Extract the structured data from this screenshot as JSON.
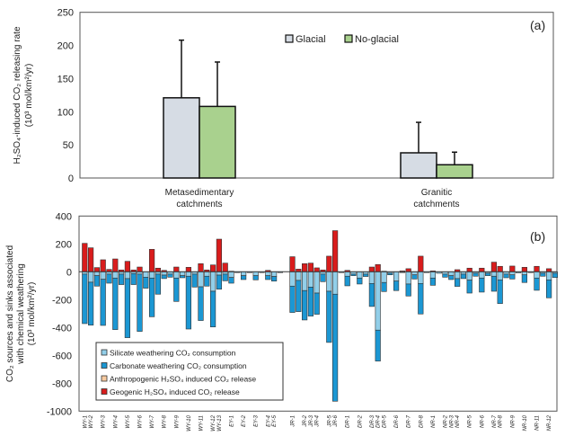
{
  "chart_data": [
    {
      "type": "bar",
      "panel_label": "(a)",
      "ylabel_line1": "H₂SO₄-induced CO₂ releasing rate",
      "ylabel_line2": "(10³ mol/km²/yr)",
      "ylim": [
        0,
        250
      ],
      "yticks": [
        0,
        50,
        100,
        150,
        200,
        250
      ],
      "categories": [
        [
          "Metasedimentary",
          "catchments"
        ],
        [
          "Granitic",
          "catchments"
        ]
      ],
      "legend_position": "top-center",
      "series": [
        {
          "name": "Glacial",
          "color": "#d6dce4",
          "values": [
            121,
            38
          ],
          "error_upper": [
            87,
            46
          ]
        },
        {
          "name": "No-glacial",
          "color": "#a9d18e",
          "values": [
            108,
            20
          ],
          "error_upper": [
            67,
            19
          ]
        }
      ]
    },
    {
      "type": "bar",
      "stacked": true,
      "panel_label": "(b)",
      "ylabel_line1": "CO₂ sources and sinks associated",
      "ylabel_line2": "with chemical weathering",
      "ylabel_line3": "(10³ mol/km²/yr)",
      "ylim": [
        -1000,
        400
      ],
      "yticks": [
        400,
        200,
        0,
        -200,
        -400,
        -600,
        -800,
        -1000
      ],
      "legend_position": "bottom-left",
      "series": [
        {
          "name": "Silicate weathering CO₂ consumption",
          "color": "#92cfe9"
        },
        {
          "name": "Carbonate weathering CO₂ consumption",
          "color": "#1b97d3"
        },
        {
          "name": "Anthropogenic H₂SO₄ induced CO₂  release",
          "color": "#f8cba0"
        },
        {
          "name": "Geogenic H₂SO₄ induced CO₂  release",
          "color": "#d91c1c"
        }
      ],
      "bars": [
        {
          "label": "WY-1",
          "silicate": -17,
          "carbonate": -355,
          "geogenic": 204
        },
        {
          "label": "WY-2",
          "silicate": -75,
          "carbonate": -308,
          "geogenic": 172
        },
        {
          "label": "",
          "silicate": -28,
          "carbonate": -75,
          "geogenic": 30
        },
        {
          "label": "WY-3",
          "silicate": -54,
          "carbonate": -331,
          "geogenic": 86
        },
        {
          "label": "",
          "silicate": -17,
          "carbonate": -65,
          "geogenic": 17
        },
        {
          "label": "WY-4",
          "silicate": -45,
          "carbonate": -370,
          "geogenic": 92
        },
        {
          "label": "",
          "silicate": -17,
          "carbonate": -75,
          "geogenic": 13
        },
        {
          "label": "WY-5",
          "silicate": -49,
          "carbonate": -424,
          "geogenic": 75
        },
        {
          "label": "",
          "silicate": -13,
          "carbonate": -79,
          "geogenic": 13
        },
        {
          "label": "WY-6",
          "silicate": -17,
          "carbonate": -411,
          "geogenic": 34
        },
        {
          "label": "",
          "silicate": -39,
          "carbonate": -79,
          "geogenic": 0
        },
        {
          "label": "WY-7",
          "silicate": -45,
          "carbonate": -278,
          "geogenic": 161
        },
        {
          "label": "",
          "silicate": -17,
          "carbonate": -144,
          "geogenic": 26
        },
        {
          "label": "WY-8",
          "silicate": -24,
          "carbonate": -25,
          "geogenic": 10
        },
        {
          "label": "",
          "silicate": -17,
          "carbonate": -22,
          "geogenic": 0
        },
        {
          "label": "WY-9",
          "silicate": -45,
          "carbonate": -168,
          "geogenic": 34
        },
        {
          "label": "",
          "silicate": -28,
          "carbonate": -15,
          "geogenic": 0
        },
        {
          "label": "WY-10",
          "silicate": -32,
          "carbonate": -379,
          "geogenic": 32
        },
        {
          "label": "",
          "silicate": -17,
          "carbonate": -93,
          "geogenic": 0
        },
        {
          "label": "WY-11",
          "silicate": -108,
          "carbonate": -242,
          "geogenic": 58
        },
        {
          "label": "",
          "silicate": -32,
          "carbonate": -71,
          "geogenic": 13
        },
        {
          "label": "WY-12",
          "silicate": -140,
          "carbonate": -256,
          "geogenic": 49
        },
        {
          "label": "WY-13",
          "silicate": -24,
          "carbonate": -101,
          "geogenic": 234
        },
        {
          "label": "",
          "silicate": -17,
          "carbonate": -48,
          "geogenic": 62
        },
        {
          "label": "EY-1",
          "silicate": -41,
          "carbonate": -41,
          "geogenic": 4
        },
        {
          "label": "",
          "silicate": -6,
          "carbonate": 0,
          "geogenic": 0
        },
        {
          "label": "EY-2",
          "silicate": -28,
          "carbonate": -28,
          "geogenic": 0
        },
        {
          "label": "",
          "silicate": -6,
          "carbonate": 0,
          "geogenic": 0
        },
        {
          "label": "EY-3",
          "silicate": -28,
          "carbonate": -30,
          "geogenic": 0
        },
        {
          "label": "",
          "silicate": -6,
          "carbonate": 0,
          "geogenic": 0
        },
        {
          "label": "EY-4",
          "silicate": -28,
          "carbonate": -28,
          "geogenic": 10
        },
        {
          "label": "EY-5",
          "silicate": -34,
          "carbonate": -33,
          "geogenic": 0
        },
        {
          "label": "",
          "silicate": -6,
          "carbonate": 0,
          "geogenic": 0
        },
        {
          "label": "JR-1",
          "silicate": -103,
          "carbonate": -189,
          "geogenic": 108
        },
        {
          "label": "",
          "silicate": -62,
          "carbonate": -224,
          "geogenic": 19
        },
        {
          "label": "JR-2",
          "silicate": -135,
          "carbonate": -211,
          "geogenic": 58
        },
        {
          "label": "JR-3",
          "silicate": -110,
          "carbonate": -208,
          "geogenic": 62
        },
        {
          "label": "JR-4",
          "silicate": -153,
          "carbonate": -152,
          "geogenic": 28
        },
        {
          "label": "",
          "silicate": -17,
          "carbonate": -54,
          "geogenic": 13
        },
        {
          "label": "JR-5",
          "silicate": -140,
          "carbonate": -367,
          "geogenic": 112
        },
        {
          "label": "JR-6",
          "silicate": -161,
          "carbonate": -768,
          "geogenic": 295
        },
        {
          "label": "",
          "silicate": -6,
          "carbonate": 0,
          "geogenic": 0
        },
        {
          "label": "DR-1",
          "silicate": -32,
          "carbonate": -69,
          "geogenic": 10
        },
        {
          "label": "",
          "silicate": -17,
          "carbonate": -11,
          "geogenic": 0
        },
        {
          "label": "DR-2",
          "silicate": -45,
          "carbonate": -43,
          "geogenic": 0
        },
        {
          "label": "",
          "silicate": -17,
          "carbonate": -17,
          "geogenic": 0
        },
        {
          "label": "DR-3",
          "silicate": -84,
          "carbonate": -165,
          "geogenic": 34
        },
        {
          "label": "DR-4",
          "silicate": -419,
          "carbonate": -222,
          "geogenic": 52
        },
        {
          "label": "DR-5",
          "silicate": -77,
          "carbonate": -65,
          "geogenic": 4
        },
        {
          "label": "",
          "silicate": -11,
          "carbonate": -11,
          "geogenic": 0
        },
        {
          "label": "DR-6",
          "silicate": -67,
          "carbonate": -68,
          "geogenic": 0
        },
        {
          "label": "",
          "silicate": -6,
          "carbonate": 0,
          "geogenic": 6
        },
        {
          "label": "DR-7",
          "silicate": -88,
          "carbonate": -86,
          "geogenic": 22
        },
        {
          "label": "",
          "silicate": -22,
          "carbonate": -30,
          "geogenic": 0
        },
        {
          "label": "DR-8",
          "silicate": -84,
          "carbonate": -219,
          "geogenic": 112
        },
        {
          "label": "",
          "silicate": -6,
          "carbonate": 0,
          "geogenic": 0
        },
        {
          "label": "NR-1",
          "silicate": -45,
          "carbonate": -52,
          "geogenic": 6
        },
        {
          "label": "",
          "silicate": -11,
          "carbonate": 0,
          "geogenic": 0
        },
        {
          "label": "NR-2",
          "silicate": -17,
          "carbonate": -22,
          "geogenic": 0
        },
        {
          "label": "NR-3",
          "silicate": -28,
          "carbonate": -28,
          "geogenic": 0
        },
        {
          "label": "NR-4",
          "silicate": -49,
          "carbonate": -56,
          "geogenic": 15
        },
        {
          "label": "",
          "silicate": -17,
          "carbonate": -32,
          "geogenic": 0
        },
        {
          "label": "NR-5",
          "silicate": -60,
          "carbonate": -93,
          "geogenic": 26
        },
        {
          "label": "",
          "silicate": -11,
          "carbonate": -21,
          "geogenic": 0
        },
        {
          "label": "NR-6",
          "silicate": -45,
          "carbonate": -101,
          "geogenic": 26
        },
        {
          "label": "",
          "silicate": -11,
          "carbonate": -17,
          "geogenic": 0
        },
        {
          "label": "NR-7",
          "silicate": -32,
          "carbonate": -108,
          "geogenic": 69
        },
        {
          "label": "NR-8",
          "silicate": -58,
          "carbonate": -170,
          "geogenic": 39
        },
        {
          "label": "",
          "silicate": -17,
          "carbonate": -26,
          "geogenic": 0
        },
        {
          "label": "NR-9",
          "silicate": -22,
          "carbonate": -30,
          "geogenic": 41
        },
        {
          "label": "",
          "silicate": -8,
          "carbonate": 0,
          "geogenic": 0
        },
        {
          "label": "NR-10",
          "silicate": -22,
          "carbonate": -55,
          "geogenic": 32
        },
        {
          "label": "",
          "silicate": -6,
          "carbonate": 0,
          "geogenic": 0
        },
        {
          "label": "NR-11",
          "silicate": -45,
          "carbonate": -88,
          "geogenic": 39
        },
        {
          "label": "",
          "silicate": -11,
          "carbonate": -21,
          "geogenic": 0
        },
        {
          "label": "NR-12",
          "silicate": -58,
          "carbonate": -129,
          "geogenic": 22
        },
        {
          "label": "",
          "silicate": -11,
          "carbonate": -30,
          "geogenic": 0
        }
      ]
    }
  ]
}
